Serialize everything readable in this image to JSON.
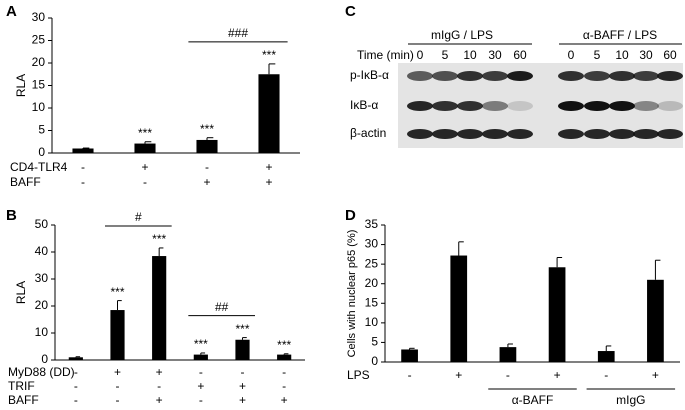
{
  "panels": [
    "A",
    "B",
    "C",
    "D"
  ],
  "chart_data": [
    {
      "type": "bar",
      "ylabel": "RLA",
      "color": "#000000",
      "values": [
        1,
        2.1,
        2.9,
        17.5
      ],
      "errors": [
        0.1,
        0.4,
        0.5,
        2.3
      ],
      "ylim": [
        0,
        30
      ],
      "yticks": [
        0,
        5,
        10,
        15,
        20,
        25,
        30
      ],
      "annotations": [
        null,
        "***",
        "***",
        "***"
      ],
      "brackets": [
        {
          "label": "###",
          "bars": [
            2,
            3
          ]
        }
      ],
      "conditions": [
        {
          "name": "CD4-TLR4",
          "values": [
            "-",
            "+",
            "-",
            "+"
          ]
        },
        {
          "name": "BAFF",
          "values": [
            "-",
            "-",
            "+",
            "+"
          ]
        }
      ]
    },
    {
      "type": "bar",
      "ylabel": "RLA",
      "color": "#000000",
      "values": [
        1,
        18.5,
        38.5,
        2,
        7.5,
        2
      ],
      "errors": [
        0.2,
        3.5,
        3,
        0.6,
        0.8,
        0.3
      ],
      "ylim": [
        0,
        50
      ],
      "yticks": [
        0,
        10,
        20,
        30,
        40,
        50
      ],
      "annotations": [
        null,
        "***",
        "***",
        "***",
        "***",
        "***"
      ],
      "brackets": [
        {
          "label": "#",
          "bars": [
            1,
            2
          ]
        },
        {
          "label": "##",
          "bars": [
            3,
            4
          ]
        }
      ],
      "conditions": [
        {
          "name": "MyD88 (DD)",
          "values": [
            "-",
            "+",
            "+",
            "-",
            "-",
            "-"
          ]
        },
        {
          "name": "TRIF",
          "values": [
            "-",
            "-",
            "-",
            "+",
            "+",
            "-"
          ]
        },
        {
          "name": "BAFF",
          "values": [
            "-",
            "-",
            "+",
            "-",
            "+",
            "+"
          ]
        }
      ]
    },
    {
      "type": "bar",
      "ylabel": "Cells with nuclear p65 (%)",
      "color": "#000000",
      "values": [
        3.2,
        27.2,
        3.8,
        24.2,
        2.8,
        21
      ],
      "errors": [
        0.3,
        3.5,
        0.8,
        2.5,
        1.3,
        5
      ],
      "ylim": [
        0,
        35
      ],
      "yticks": [
        0,
        5,
        10,
        15,
        20,
        25,
        30,
        35
      ],
      "conditions": [
        {
          "name": "LPS",
          "values": [
            "-",
            "+",
            "-",
            "+",
            "-",
            "+"
          ]
        }
      ],
      "groups": [
        {
          "label": "α-BAFF",
          "bars": [
            2,
            3
          ]
        },
        {
          "label": "mIgG",
          "bars": [
            4,
            5
          ]
        }
      ]
    }
  ],
  "blot": {
    "time_label": "Time (min)",
    "groups": [
      {
        "label": "mIgG / LPS",
        "times": [
          0,
          5,
          10,
          30,
          60
        ]
      },
      {
        "label": "α-BAFF / LPS",
        "times": [
          0,
          5,
          10,
          30,
          60
        ]
      }
    ],
    "rows": [
      "p-IκB-α",
      "IκB-α",
      "β-actin"
    ]
  }
}
